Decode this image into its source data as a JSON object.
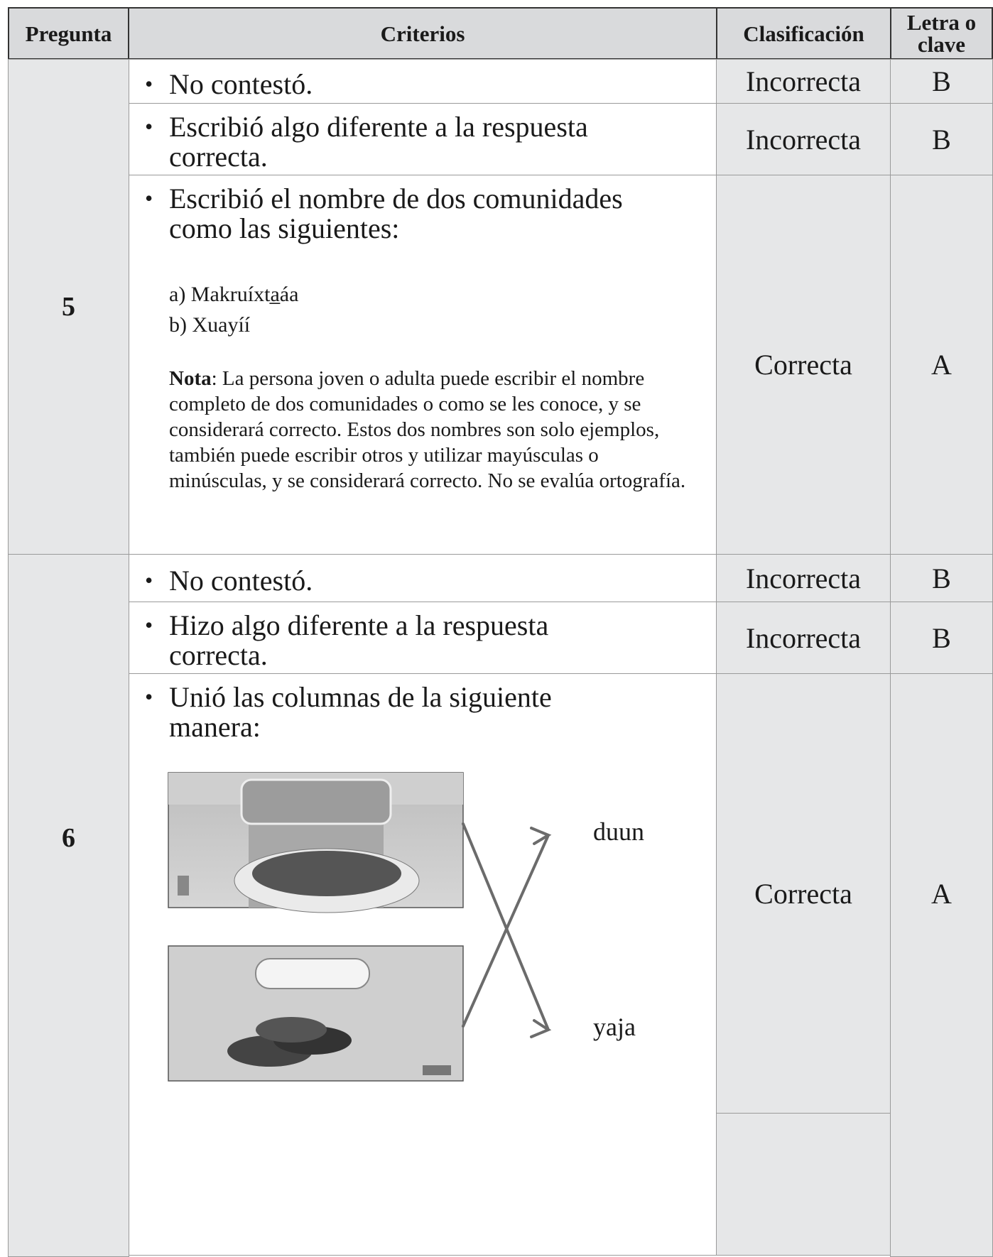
{
  "table": {
    "headers": [
      "Pregunta",
      "Criterios",
      "Clasificación",
      "Letra o clave"
    ],
    "questions": [
      {
        "number": "5",
        "rows": [
          {
            "criterion": "No contestó.",
            "classification": "Incorrecta",
            "key": "B"
          },
          {
            "criterion": "Escribió algo diferente a la respuesta correcta.",
            "classification": "Incorrecta",
            "key": "B"
          },
          {
            "criterion": "Escribió el nombre de dos comunidades como las siguientes:",
            "examples": [
              "a) Makruíxta̲áa",
              "b) Xuayíí"
            ],
            "note": {
              "label": "Nota",
              "text": ": La persona joven o adulta puede escribir el nombre completo de dos comunidades o como se les conoce, y se considerará correcto. Estos dos nombres son solo ejemplos, también puede escribir otros y utilizar mayúsculas o minúsculas, y se considerará correcto. No se evalúa ortografía."
            },
            "classification": "Correcta",
            "key": "A"
          }
        ]
      },
      {
        "number": "6",
        "rows": [
          {
            "criterion": "No contestó.",
            "classification": "Incorrecta",
            "key": "B"
          },
          {
            "criterion": "Hizo algo diferente a la respuesta correcta.",
            "classification": "Incorrecta",
            "key": "B"
          },
          {
            "criterion": "Unió las columnas de la siguiente manera:",
            "matches": [
              "duun",
              "yaja"
            ],
            "classification": "Correcta",
            "key": "A"
          }
        ]
      }
    ]
  }
}
